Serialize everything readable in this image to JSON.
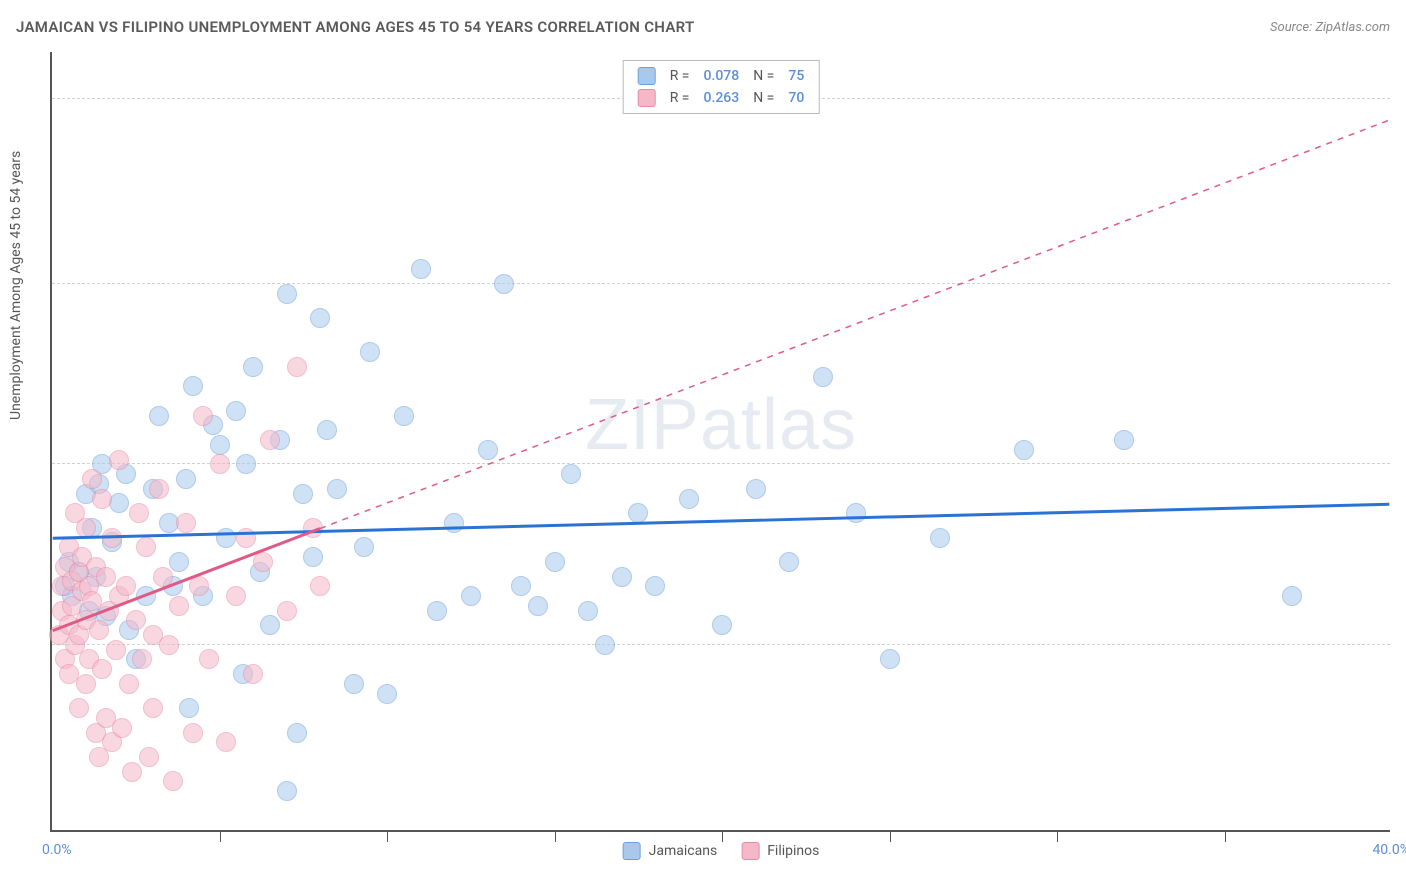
{
  "title": "JAMAICAN VS FILIPINO UNEMPLOYMENT AMONG AGES 45 TO 54 YEARS CORRELATION CHART",
  "source_prefix": "Source: ",
  "source": "ZipAtlas.com",
  "watermark": "ZIPatlas",
  "ylabel": "Unemployment Among Ages 45 to 54 years",
  "chart": {
    "type": "scatter",
    "xlim": [
      0,
      40
    ],
    "ylim": [
      0,
      16
    ],
    "x_tick_step": 5,
    "y_ticks": [
      3.8,
      7.5,
      11.2,
      15.0
    ],
    "x_left_label": "0.0%",
    "x_right_label": "40.0%",
    "background": "#ffffff",
    "grid_color": "#d0d0d0",
    "axis_color": "#555555",
    "marker_radius": 10,
    "marker_opacity": 0.55,
    "series": [
      {
        "name": "Jamaicans",
        "fill": "#a9c9ec",
        "stroke": "#6fa0d8",
        "line_color": "#2a72d4",
        "line_width": 3,
        "r_value": "0.078",
        "n_value": "75",
        "trend": {
          "x0": 0,
          "y0": 6.0,
          "x1": 40,
          "y1": 6.7,
          "dash": false,
          "extrap_x": 40
        },
        "data_extent_x": 40,
        "points": [
          [
            0.4,
            5.0
          ],
          [
            0.5,
            5.5
          ],
          [
            0.6,
            4.8
          ],
          [
            0.8,
            5.3
          ],
          [
            1.0,
            6.9
          ],
          [
            1.1,
            4.5
          ],
          [
            1.3,
            5.2
          ],
          [
            1.5,
            7.5
          ],
          [
            1.6,
            4.4
          ],
          [
            1.8,
            5.9
          ],
          [
            2.0,
            6.7
          ],
          [
            2.2,
            7.3
          ],
          [
            2.3,
            4.1
          ],
          [
            2.5,
            3.5
          ],
          [
            2.8,
            4.8
          ],
          [
            1.2,
            6.2
          ],
          [
            1.4,
            7.1
          ],
          [
            3.0,
            7.0
          ],
          [
            3.2,
            8.5
          ],
          [
            3.5,
            6.3
          ],
          [
            3.6,
            5.0
          ],
          [
            3.8,
            5.5
          ],
          [
            4.0,
            7.2
          ],
          [
            4.1,
            2.5
          ],
          [
            4.2,
            9.1
          ],
          [
            4.5,
            4.8
          ],
          [
            4.8,
            8.3
          ],
          [
            5.0,
            7.9
          ],
          [
            5.2,
            6.0
          ],
          [
            5.5,
            8.6
          ],
          [
            5.7,
            3.2
          ],
          [
            5.8,
            7.5
          ],
          [
            6.0,
            9.5
          ],
          [
            6.2,
            5.3
          ],
          [
            6.5,
            4.2
          ],
          [
            6.8,
            8.0
          ],
          [
            7.0,
            11.0
          ],
          [
            7.0,
            0.8
          ],
          [
            7.3,
            2.0
          ],
          [
            7.5,
            6.9
          ],
          [
            7.8,
            5.6
          ],
          [
            8.0,
            10.5
          ],
          [
            8.2,
            8.2
          ],
          [
            8.5,
            7.0
          ],
          [
            9.0,
            3.0
          ],
          [
            9.3,
            5.8
          ],
          [
            9.5,
            9.8
          ],
          [
            10.0,
            2.8
          ],
          [
            10.5,
            8.5
          ],
          [
            11.0,
            11.5
          ],
          [
            11.5,
            4.5
          ],
          [
            12.0,
            6.3
          ],
          [
            12.5,
            4.8
          ],
          [
            13.0,
            7.8
          ],
          [
            13.5,
            11.2
          ],
          [
            14.0,
            5.0
          ],
          [
            14.5,
            4.6
          ],
          [
            15.0,
            5.5
          ],
          [
            15.5,
            7.3
          ],
          [
            16.0,
            4.5
          ],
          [
            16.5,
            3.8
          ],
          [
            17.0,
            5.2
          ],
          [
            17.5,
            6.5
          ],
          [
            18.0,
            5.0
          ],
          [
            19.0,
            6.8
          ],
          [
            20.0,
            4.2
          ],
          [
            21.0,
            7.0
          ],
          [
            22.0,
            5.5
          ],
          [
            23.0,
            9.3
          ],
          [
            24.0,
            6.5
          ],
          [
            25.0,
            3.5
          ],
          [
            26.5,
            6.0
          ],
          [
            29.0,
            7.8
          ],
          [
            32.0,
            8.0
          ],
          [
            37.0,
            4.8
          ]
        ]
      },
      {
        "name": "Filipinos",
        "fill": "#f5b8c9",
        "stroke": "#e88aa5",
        "line_color": "#e05a85",
        "line_width": 3,
        "r_value": "0.263",
        "n_value": "70",
        "trend": {
          "x0": 0,
          "y0": 4.1,
          "x1": 8,
          "y1": 6.2,
          "dash": true,
          "extrap_x": 40
        },
        "data_extent_x": 8,
        "points": [
          [
            0.2,
            4.0
          ],
          [
            0.3,
            5.0
          ],
          [
            0.3,
            4.5
          ],
          [
            0.4,
            3.5
          ],
          [
            0.4,
            5.4
          ],
          [
            0.5,
            4.2
          ],
          [
            0.5,
            5.8
          ],
          [
            0.5,
            3.2
          ],
          [
            0.6,
            5.1
          ],
          [
            0.6,
            4.6
          ],
          [
            0.7,
            6.5
          ],
          [
            0.7,
            3.8
          ],
          [
            0.8,
            5.3
          ],
          [
            0.8,
            4.0
          ],
          [
            0.8,
            2.5
          ],
          [
            0.9,
            4.9
          ],
          [
            0.9,
            5.6
          ],
          [
            1.0,
            3.0
          ],
          [
            1.0,
            6.2
          ],
          [
            1.0,
            4.3
          ],
          [
            1.1,
            5.0
          ],
          [
            1.1,
            3.5
          ],
          [
            1.2,
            7.2
          ],
          [
            1.2,
            4.7
          ],
          [
            1.3,
            2.0
          ],
          [
            1.3,
            5.4
          ],
          [
            1.4,
            1.5
          ],
          [
            1.4,
            4.1
          ],
          [
            1.5,
            6.8
          ],
          [
            1.5,
            3.3
          ],
          [
            1.6,
            5.2
          ],
          [
            1.6,
            2.3
          ],
          [
            1.7,
            4.5
          ],
          [
            1.8,
            1.8
          ],
          [
            1.8,
            6.0
          ],
          [
            1.9,
            3.7
          ],
          [
            2.0,
            7.6
          ],
          [
            2.0,
            4.8
          ],
          [
            2.1,
            2.1
          ],
          [
            2.2,
            5.0
          ],
          [
            2.3,
            3.0
          ],
          [
            2.4,
            1.2
          ],
          [
            2.5,
            4.3
          ],
          [
            2.6,
            6.5
          ],
          [
            2.7,
            3.5
          ],
          [
            2.8,
            5.8
          ],
          [
            2.9,
            1.5
          ],
          [
            3.0,
            4.0
          ],
          [
            3.0,
            2.5
          ],
          [
            3.2,
            7.0
          ],
          [
            3.3,
            5.2
          ],
          [
            3.5,
            3.8
          ],
          [
            3.6,
            1.0
          ],
          [
            3.8,
            4.6
          ],
          [
            4.0,
            6.3
          ],
          [
            4.2,
            2.0
          ],
          [
            4.4,
            5.0
          ],
          [
            4.5,
            8.5
          ],
          [
            4.7,
            3.5
          ],
          [
            5.0,
            7.5
          ],
          [
            5.2,
            1.8
          ],
          [
            5.5,
            4.8
          ],
          [
            5.8,
            6.0
          ],
          [
            6.0,
            3.2
          ],
          [
            6.3,
            5.5
          ],
          [
            6.5,
            8.0
          ],
          [
            7.0,
            4.5
          ],
          [
            7.3,
            9.5
          ],
          [
            7.8,
            6.2
          ],
          [
            8.0,
            5.0
          ]
        ]
      }
    ]
  },
  "legend_top": {
    "r_label": "R =",
    "n_label": "N ="
  },
  "legend_bottom": [
    {
      "label": "Jamaicans",
      "fill": "#a9c9ec",
      "stroke": "#6fa0d8"
    },
    {
      "label": "Filipinos",
      "fill": "#f5b8c9",
      "stroke": "#e88aa5"
    }
  ]
}
